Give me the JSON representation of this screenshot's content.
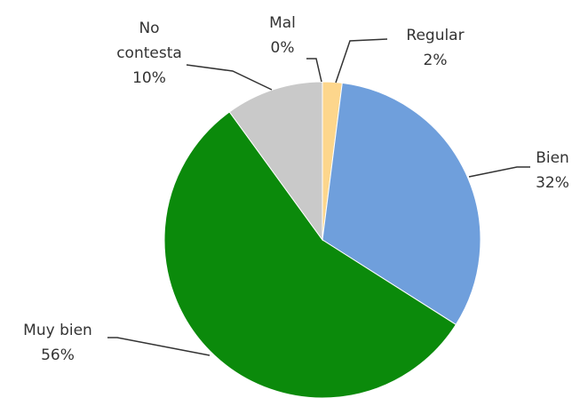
{
  "chart_data": {
    "type": "pie",
    "categories": [
      "Mal",
      "Regular",
      "Bien",
      "Muy bien",
      "No contesta"
    ],
    "values": [
      0,
      2,
      32,
      56,
      10
    ],
    "value_labels": [
      "0%",
      "2%",
      "32%",
      "56%",
      "10%"
    ],
    "colors": [
      "#a3201a",
      "#fdd68c",
      "#6f9fdc",
      "#0b8a0b",
      "#c9c9c9"
    ]
  }
}
